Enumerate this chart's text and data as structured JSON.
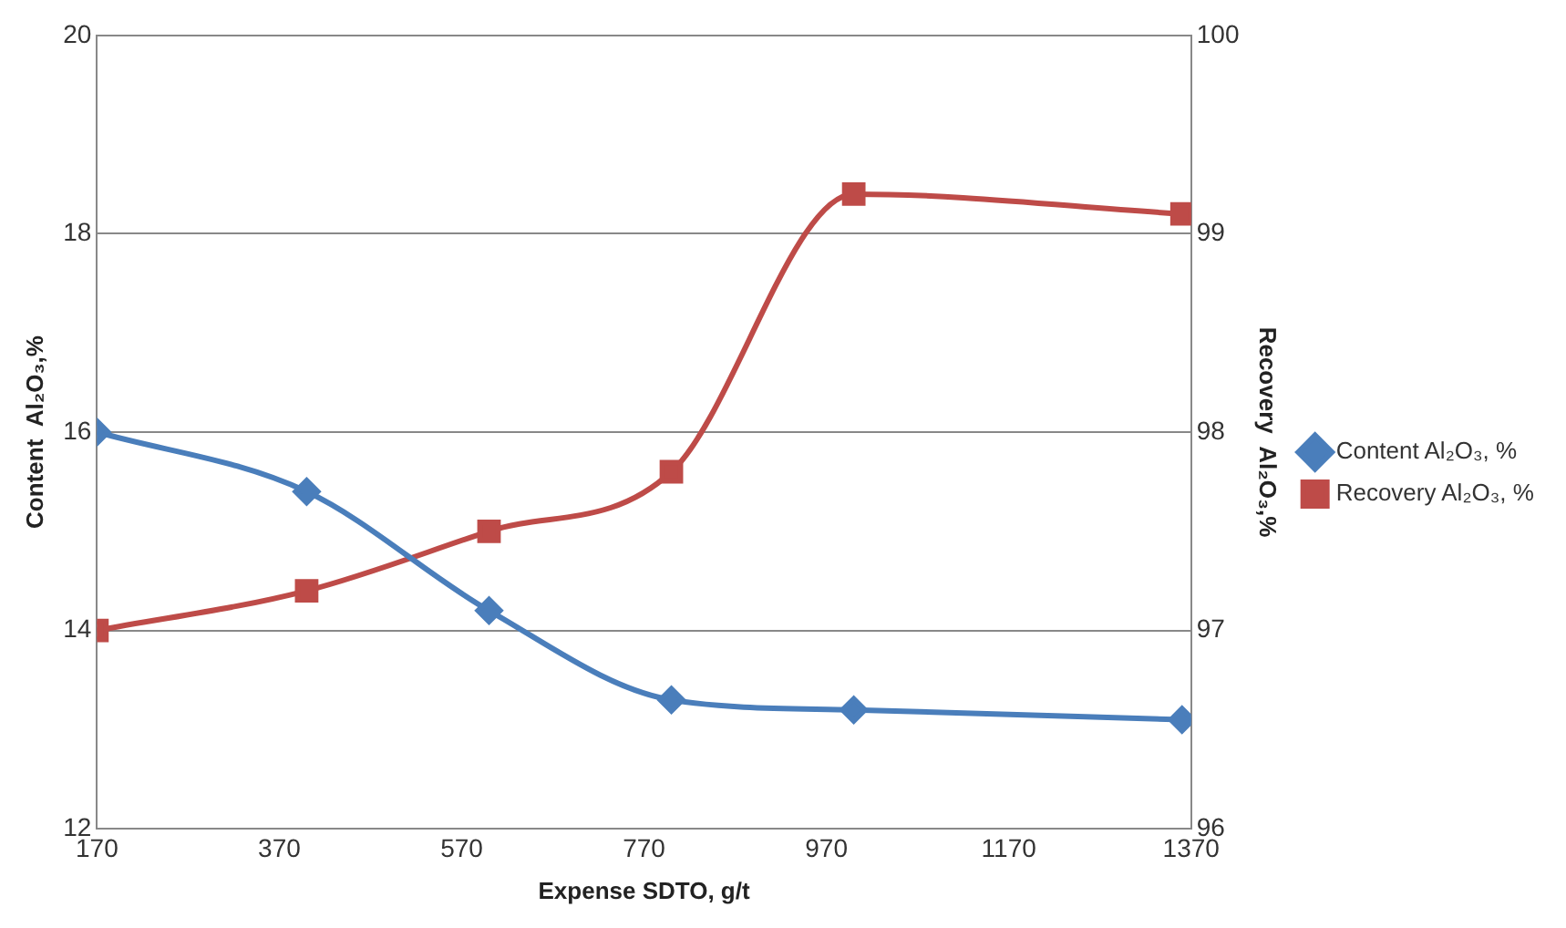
{
  "chart_data": {
    "type": "line",
    "xlabel": "Expense SDTO, g/t",
    "ylabel": "Content  Al₂O₃,%",
    "y2label": "Recovery  Al₂O₃,%",
    "x": [
      170,
      400,
      600,
      800,
      1000,
      1360
    ],
    "xlim": [
      170,
      1370
    ],
    "xticks": [
      170,
      370,
      570,
      770,
      970,
      1170,
      1370
    ],
    "ylim": [
      12,
      20
    ],
    "yticks": [
      12,
      14,
      16,
      18,
      20
    ],
    "y2lim": [
      96,
      100
    ],
    "y2ticks": [
      96,
      97,
      98,
      99,
      100
    ],
    "grid": "y",
    "legend": "right",
    "series": [
      {
        "name": "Content Al₂O₃, %",
        "color": "#4a7ebb",
        "marker": "diamond",
        "values": [
          16,
          15.4,
          14.2,
          13.3,
          13.2,
          13.1
        ]
      },
      {
        "name": "Recovery Al₂O₃, %",
        "color": "#be4b48",
        "marker": "square",
        "axis": "y2",
        "values": [
          97,
          97.2,
          97.5,
          97.8,
          99.2,
          99.1
        ]
      }
    ]
  }
}
